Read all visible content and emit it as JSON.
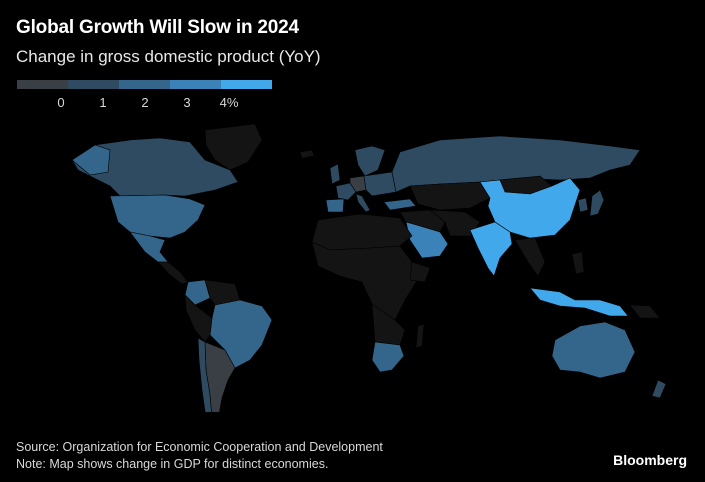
{
  "title": "Global Growth Will Slow in 2024",
  "subtitle": "Change in gross domestic product (YoY)",
  "legend": {
    "colors": [
      "#3a3f45",
      "#2e4b61",
      "#34658a",
      "#3a82b8",
      "#42a8ec"
    ],
    "ticks": [
      "0",
      "1",
      "2",
      "3",
      "4%"
    ]
  },
  "map_data": {
    "type": "choropleth",
    "unit": "% YoY",
    "no_data_color": "#141414",
    "growth_bands": {
      "under_1": [
        "Argentina",
        "Germany"
      ],
      "1_to_2": [
        "United Kingdom",
        "Italy",
        "Russia",
        "Japan",
        "South Korea",
        "Canada",
        "Chile",
        "France"
      ],
      "2_to_3": [
        "Brazil",
        "United States",
        "Mexico",
        "Australia",
        "South Africa",
        "Turkey",
        "Spain",
        "Colombia"
      ],
      "3_to_4": [
        "Saudi Arabia"
      ],
      "over_4": [
        "China",
        "India",
        "Indonesia"
      ]
    }
  },
  "footer": {
    "source": "Source: Organization for Economic Cooperation and Development",
    "note": "Note: Map shows change in GDP for distinct economies."
  },
  "brand": "Bloomberg"
}
